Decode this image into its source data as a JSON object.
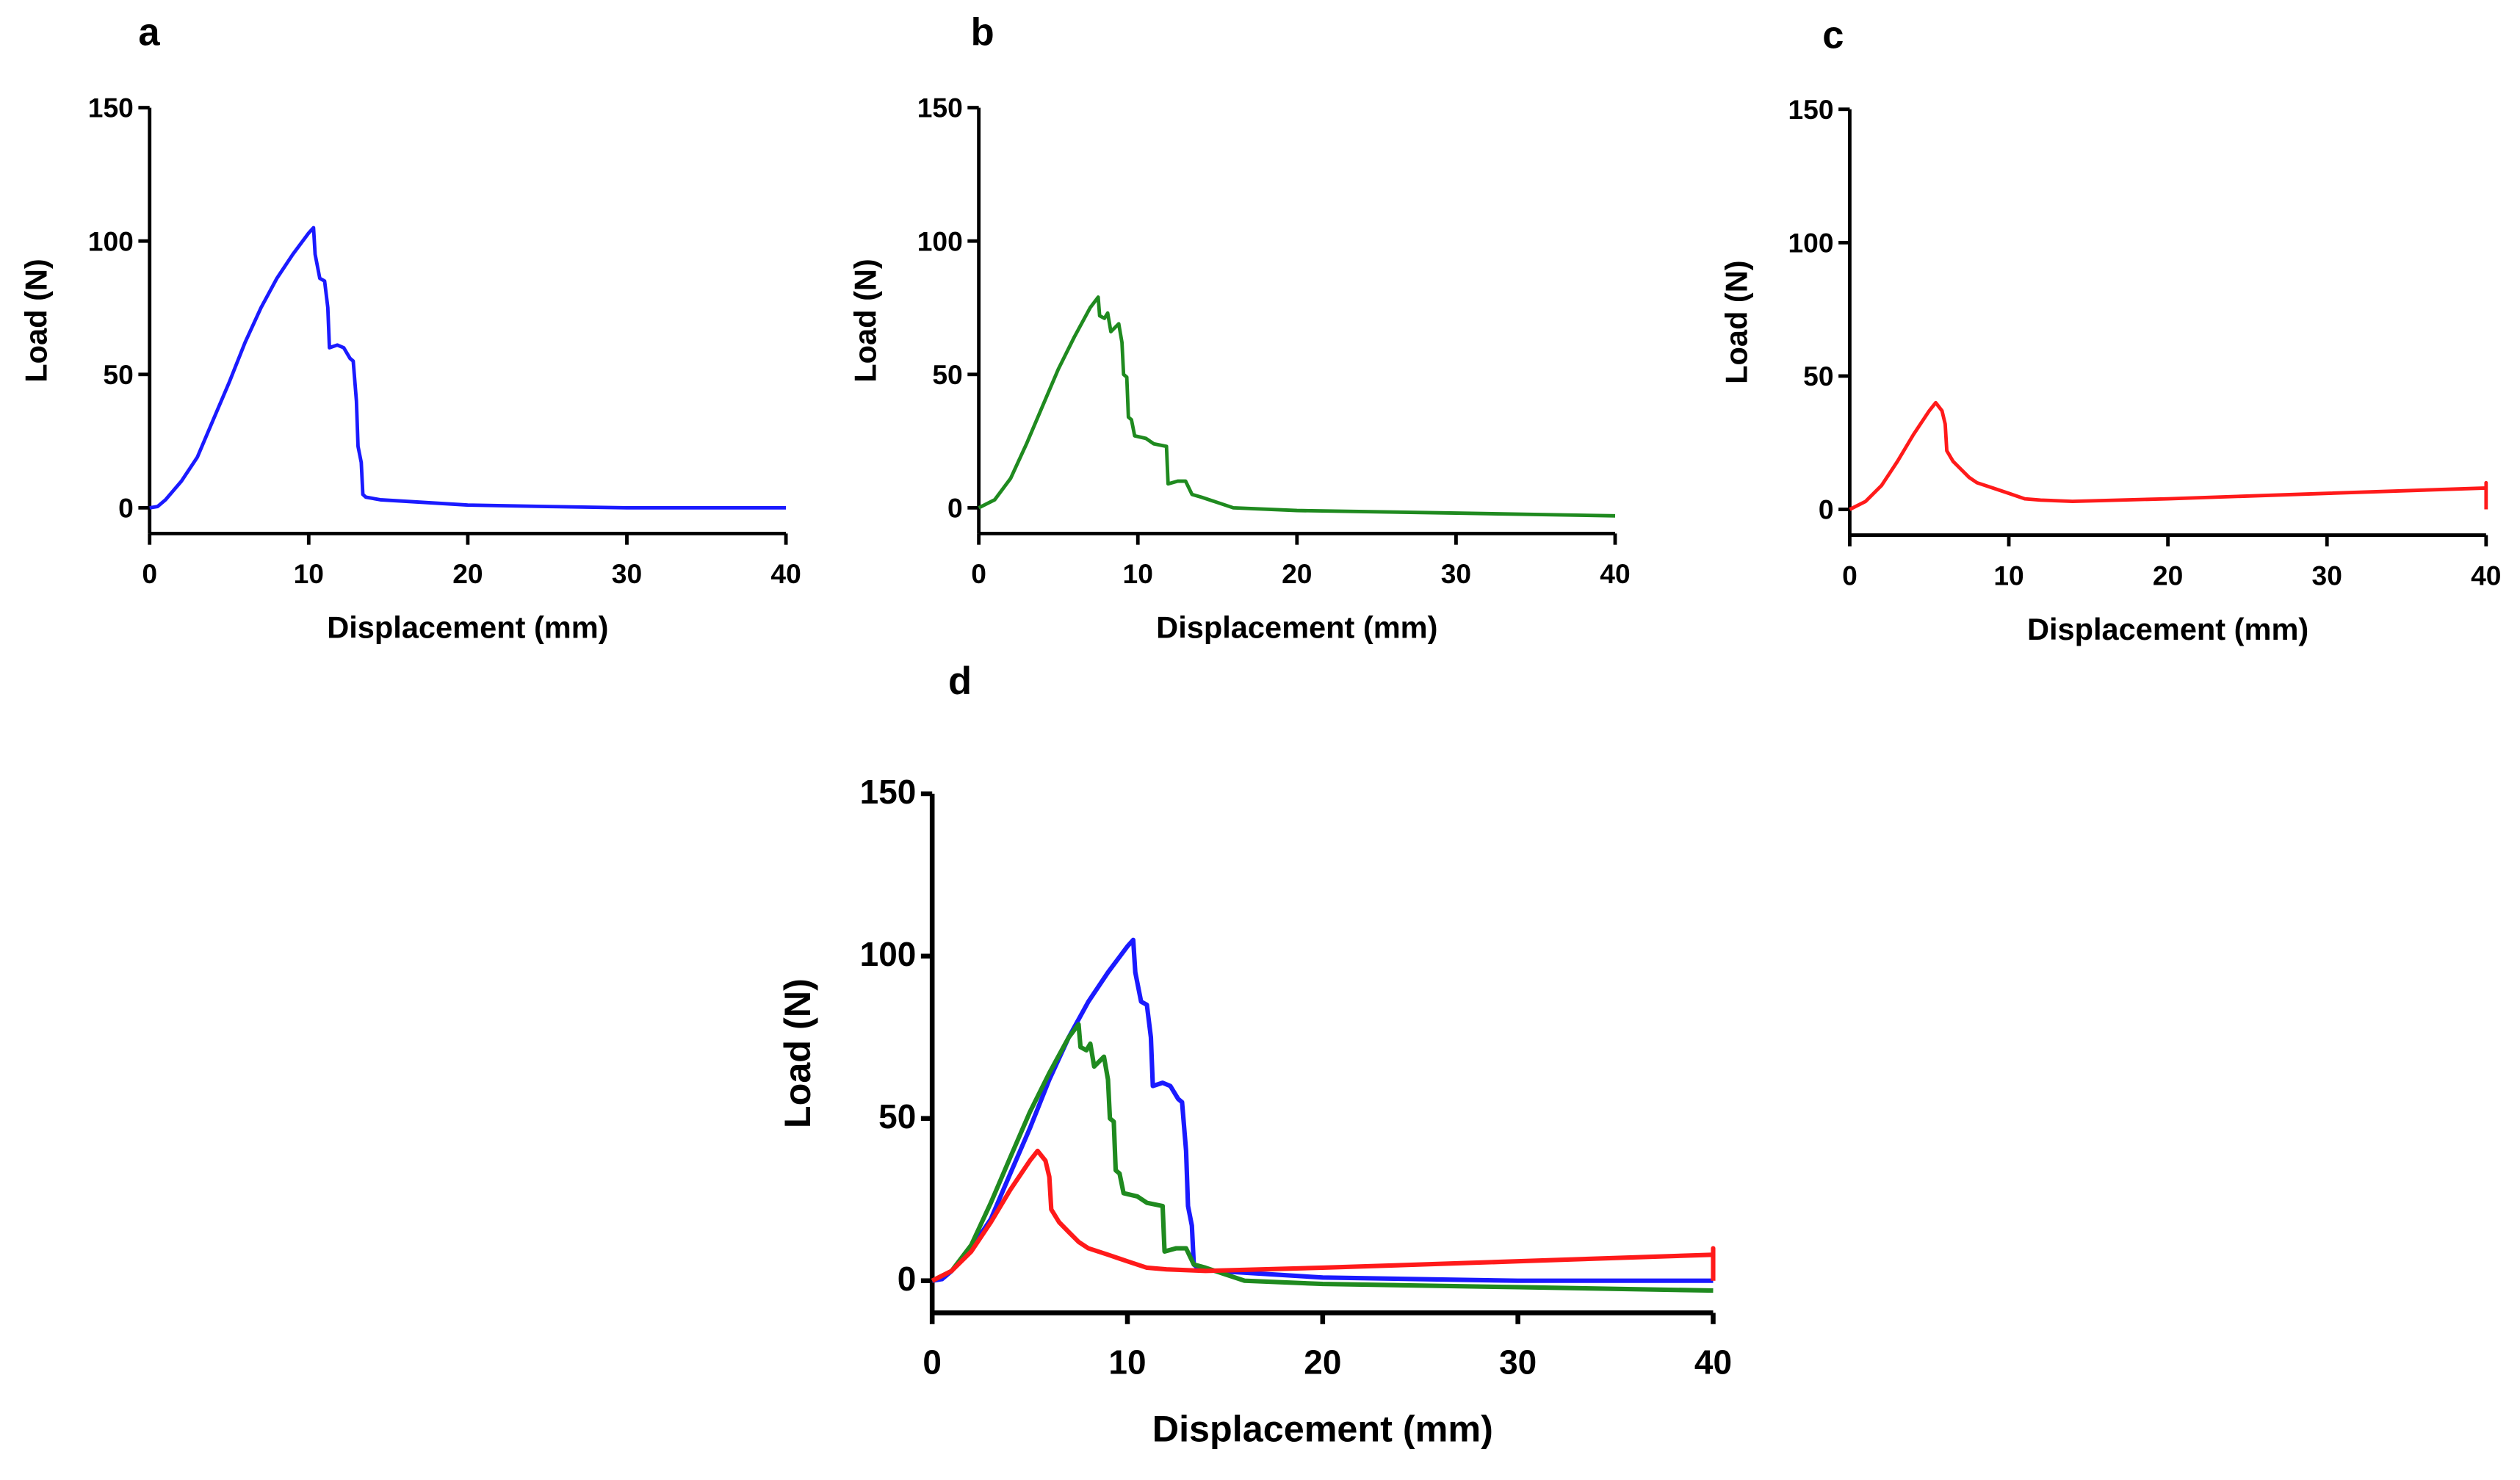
{
  "chart_data": [
    {
      "panel": "a",
      "type": "line",
      "xlabel": "Displacement (mm)",
      "ylabel": "Load (N)",
      "xlim": [
        0,
        40
      ],
      "ylim": [
        -10,
        150
      ],
      "xticks": [
        0,
        10,
        20,
        30,
        40
      ],
      "yticks": [
        0,
        50,
        100,
        150
      ],
      "series": [
        {
          "name": "blue",
          "color": "#1a1aff",
          "points": [
            [
              0,
              0
            ],
            [
              0.5,
              0.5
            ],
            [
              1,
              3
            ],
            [
              2,
              10
            ],
            [
              3,
              19
            ],
            [
              4,
              33
            ],
            [
              5,
              47
            ],
            [
              6,
              62
            ],
            [
              7,
              75
            ],
            [
              8,
              86
            ],
            [
              9,
              95
            ],
            [
              10,
              103
            ],
            [
              10.3,
              105
            ],
            [
              10.4,
              95
            ],
            [
              10.7,
              86
            ],
            [
              11,
              85
            ],
            [
              11.2,
              75
            ],
            [
              11.3,
              60
            ],
            [
              11.8,
              61
            ],
            [
              12.2,
              60
            ],
            [
              12.6,
              56
            ],
            [
              12.8,
              55
            ],
            [
              13,
              40
            ],
            [
              13.1,
              23
            ],
            [
              13.3,
              17
            ],
            [
              13.4,
              5
            ],
            [
              13.6,
              4
            ],
            [
              14.5,
              3
            ],
            [
              20,
              1
            ],
            [
              25,
              0.5
            ],
            [
              30,
              0
            ],
            [
              40,
              0
            ]
          ]
        }
      ]
    },
    {
      "panel": "b",
      "type": "line",
      "xlabel": "Displacement (mm)",
      "ylabel": "Load (N)",
      "xlim": [
        0,
        40
      ],
      "ylim": [
        -10,
        150
      ],
      "xticks": [
        0,
        10,
        20,
        30,
        40
      ],
      "yticks": [
        0,
        50,
        100,
        150
      ],
      "series": [
        {
          "name": "green",
          "color": "#1f8a1f",
          "points": [
            [
              0,
              0
            ],
            [
              1,
              3
            ],
            [
              2,
              11
            ],
            [
              3,
              24
            ],
            [
              4,
              38
            ],
            [
              5,
              52
            ],
            [
              6,
              64
            ],
            [
              7,
              75
            ],
            [
              7.5,
              79
            ],
            [
              7.6,
              72
            ],
            [
              7.9,
              71
            ],
            [
              8.1,
              73
            ],
            [
              8.3,
              66
            ],
            [
              8.8,
              69
            ],
            [
              9.0,
              62
            ],
            [
              9.1,
              50
            ],
            [
              9.3,
              49
            ],
            [
              9.4,
              34
            ],
            [
              9.6,
              33
            ],
            [
              9.8,
              27
            ],
            [
              10.5,
              26
            ],
            [
              11,
              24
            ],
            [
              11.8,
              23
            ],
            [
              11.9,
              9
            ],
            [
              12.5,
              10
            ],
            [
              13,
              10
            ],
            [
              13.4,
              5
            ],
            [
              14,
              4
            ],
            [
              15,
              2
            ],
            [
              16,
              0
            ],
            [
              20,
              -1
            ],
            [
              30,
              -2
            ],
            [
              40,
              -3
            ]
          ]
        }
      ]
    },
    {
      "panel": "c",
      "type": "line",
      "xlabel": "Displacement (mm)",
      "ylabel": "Load (N)",
      "xlim": [
        0,
        40
      ],
      "ylim": [
        -10,
        150
      ],
      "xticks": [
        0,
        10,
        20,
        30,
        40
      ],
      "yticks": [
        0,
        50,
        100,
        150
      ],
      "series": [
        {
          "name": "red",
          "color": "#ff1a1a",
          "points": [
            [
              0,
              0
            ],
            [
              1,
              3
            ],
            [
              2,
              9
            ],
            [
              3,
              18
            ],
            [
              4,
              28
            ],
            [
              5,
              37
            ],
            [
              5.4,
              40
            ],
            [
              5.8,
              37
            ],
            [
              6,
              32
            ],
            [
              6.1,
              22
            ],
            [
              6.5,
              18
            ],
            [
              7,
              15
            ],
            [
              7.5,
              12
            ],
            [
              8,
              10
            ],
            [
              9,
              8
            ],
            [
              10,
              6
            ],
            [
              11,
              4
            ],
            [
              12,
              3.5
            ],
            [
              14,
              3
            ],
            [
              20,
              4
            ],
            [
              30,
              6
            ],
            [
              40,
              8
            ],
            [
              40,
              10
            ],
            [
              40,
              0
            ]
          ]
        }
      ]
    },
    {
      "panel": "d",
      "type": "line",
      "xlabel": "Displacement (mm)",
      "ylabel": "Load (N)",
      "xlim": [
        0,
        40
      ],
      "ylim": [
        -10,
        150
      ],
      "xticks": [
        0,
        10,
        20,
        30,
        40
      ],
      "yticks": [
        0,
        50,
        100,
        150
      ],
      "series": [
        {
          "name": "blue",
          "color": "#1a1aff",
          "points": [
            [
              0,
              0
            ],
            [
              0.5,
              0.5
            ],
            [
              1,
              3
            ],
            [
              2,
              10
            ],
            [
              3,
              19
            ],
            [
              4,
              33
            ],
            [
              5,
              47
            ],
            [
              6,
              62
            ],
            [
              7,
              75
            ],
            [
              8,
              86
            ],
            [
              9,
              95
            ],
            [
              10,
              103
            ],
            [
              10.3,
              105
            ],
            [
              10.4,
              95
            ],
            [
              10.7,
              86
            ],
            [
              11,
              85
            ],
            [
              11.2,
              75
            ],
            [
              11.3,
              60
            ],
            [
              11.8,
              61
            ],
            [
              12.2,
              60
            ],
            [
              12.6,
              56
            ],
            [
              12.8,
              55
            ],
            [
              13,
              40
            ],
            [
              13.1,
              23
            ],
            [
              13.3,
              17
            ],
            [
              13.4,
              5
            ],
            [
              13.6,
              4
            ],
            [
              14.5,
              3
            ],
            [
              20,
              1
            ],
            [
              25,
              0.5
            ],
            [
              30,
              0
            ],
            [
              40,
              0
            ]
          ]
        },
        {
          "name": "green",
          "color": "#1f8a1f",
          "points": [
            [
              0,
              0
            ],
            [
              1,
              3
            ],
            [
              2,
              11
            ],
            [
              3,
              24
            ],
            [
              4,
              38
            ],
            [
              5,
              52
            ],
            [
              6,
              64
            ],
            [
              7,
              75
            ],
            [
              7.5,
              79
            ],
            [
              7.6,
              72
            ],
            [
              7.9,
              71
            ],
            [
              8.1,
              73
            ],
            [
              8.3,
              66
            ],
            [
              8.8,
              69
            ],
            [
              9.0,
              62
            ],
            [
              9.1,
              50
            ],
            [
              9.3,
              49
            ],
            [
              9.4,
              34
            ],
            [
              9.6,
              33
            ],
            [
              9.8,
              27
            ],
            [
              10.5,
              26
            ],
            [
              11,
              24
            ],
            [
              11.8,
              23
            ],
            [
              11.9,
              9
            ],
            [
              12.5,
              10
            ],
            [
              13,
              10
            ],
            [
              13.4,
              5
            ],
            [
              14,
              4
            ],
            [
              15,
              2
            ],
            [
              16,
              0
            ],
            [
              20,
              -1
            ],
            [
              30,
              -2
            ],
            [
              40,
              -3
            ]
          ]
        },
        {
          "name": "red",
          "color": "#ff1a1a",
          "points": [
            [
              0,
              0
            ],
            [
              1,
              3
            ],
            [
              2,
              9
            ],
            [
              3,
              18
            ],
            [
              4,
              28
            ],
            [
              5,
              37
            ],
            [
              5.4,
              40
            ],
            [
              5.8,
              37
            ],
            [
              6,
              32
            ],
            [
              6.1,
              22
            ],
            [
              6.5,
              18
            ],
            [
              7,
              15
            ],
            [
              7.5,
              12
            ],
            [
              8,
              10
            ],
            [
              9,
              8
            ],
            [
              10,
              6
            ],
            [
              11,
              4
            ],
            [
              12,
              3.5
            ],
            [
              14,
              3
            ],
            [
              20,
              4
            ],
            [
              30,
              6
            ],
            [
              40,
              8
            ],
            [
              40,
              10
            ],
            [
              40,
              0
            ]
          ]
        }
      ]
    }
  ]
}
